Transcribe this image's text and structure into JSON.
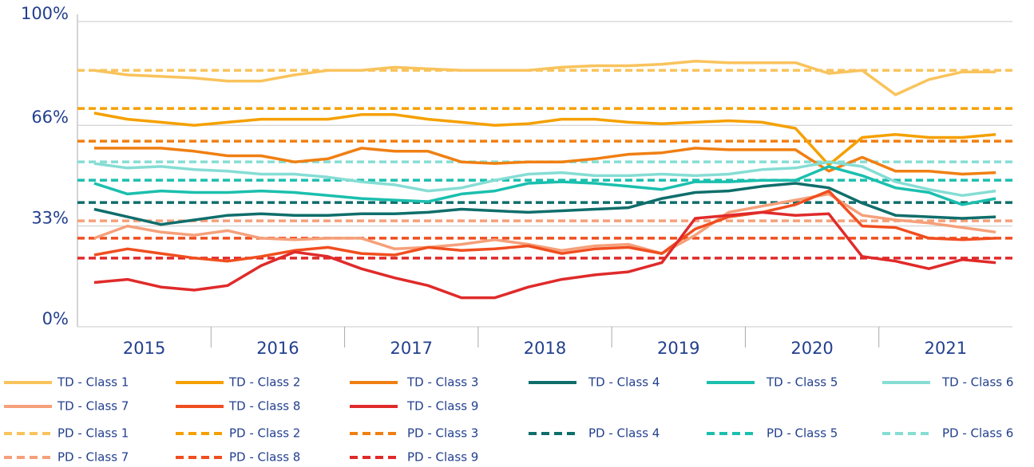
{
  "chart_data": {
    "type": "line",
    "categories": [
      "2015",
      null,
      null,
      null,
      "2016",
      null,
      null,
      null,
      "2017",
      null,
      null,
      null,
      "2018",
      null,
      null,
      null,
      "2019",
      null,
      null,
      null,
      "2020",
      null,
      null,
      null,
      "2021",
      null,
      null,
      null
    ],
    "ylim": [
      0,
      100
    ],
    "yticks": [
      {
        "value": 0,
        "label": "0%"
      },
      {
        "value": 33,
        "label": "33%"
      },
      {
        "value": 66,
        "label": "66%"
      },
      {
        "value": 100,
        "label": "100%"
      }
    ],
    "grid": true,
    "series": [
      {
        "name": "TD - Class 1",
        "color": "#f9c35c",
        "values": [
          84,
          82.5,
          82,
          81.5,
          80.5,
          80.5,
          82.5,
          84,
          84,
          85,
          84.5,
          84,
          84,
          84,
          85,
          85.5,
          85.5,
          86,
          87,
          86.5,
          86.5,
          86.5,
          83,
          84,
          76,
          81,
          83.5,
          83.5
        ]
      },
      {
        "name": "TD - Class 2",
        "color": "#f5a000",
        "values": [
          70,
          68,
          67,
          66,
          67,
          68,
          68,
          68,
          69.5,
          69.5,
          68,
          67,
          66,
          66.5,
          68,
          68,
          67,
          66.5,
          67,
          67.5,
          67,
          65,
          53,
          62,
          63,
          62,
          62,
          63
        ]
      },
      {
        "name": "TD - Class 3",
        "color": "#f07f12",
        "values": [
          58.5,
          58.5,
          58.5,
          57.5,
          56,
          56,
          54,
          55,
          58.5,
          57.5,
          57.5,
          54,
          53.5,
          54,
          54,
          55,
          56.5,
          57,
          58.5,
          58,
          58,
          58,
          51,
          55.5,
          51,
          51,
          50,
          50.5
        ]
      },
      {
        "name": "TD - Class 4",
        "color": "#0f6e6b",
        "values": [
          38.5,
          36,
          33.5,
          35,
          36.5,
          37,
          36.5,
          36.5,
          37,
          37,
          37.5,
          38.5,
          38,
          37.5,
          38,
          38.5,
          39,
          42,
          44,
          44.5,
          46,
          47,
          45.5,
          40.5,
          36.5,
          36,
          35.5,
          36
        ]
      },
      {
        "name": "TD - Class 5",
        "color": "#1bbfae",
        "values": [
          47,
          43.5,
          44.5,
          44,
          44,
          44.5,
          44,
          43,
          42,
          41.5,
          41,
          43.5,
          44.5,
          47,
          47.5,
          47,
          46,
          45,
          47.5,
          47.5,
          48,
          48,
          52.5,
          49.5,
          45.5,
          44,
          40,
          42
        ]
      },
      {
        "name": "TD - Class 6",
        "color": "#86ddd4",
        "values": [
          53.5,
          52,
          52.5,
          51.5,
          51,
          50,
          50,
          49,
          47.5,
          46.5,
          44.5,
          45.5,
          48,
          50,
          50.5,
          49.5,
          49.5,
          50,
          49.5,
          50,
          51.5,
          52,
          54,
          52.5,
          47.5,
          45,
          43,
          44.5
        ]
      },
      {
        "name": "TD - Class 7",
        "color": "#f5a07a",
        "values": [
          29,
          33,
          31,
          30,
          31.5,
          29,
          28.5,
          29,
          29,
          25.5,
          26,
          27,
          28.5,
          27,
          25,
          26.5,
          27,
          24,
          30,
          37.5,
          39.5,
          41.5,
          43.5,
          36.5,
          35,
          34,
          32.5,
          31
        ]
      },
      {
        "name": "TD - Class 8",
        "color": "#f04e1f",
        "values": [
          23.5,
          25.5,
          24,
          22.5,
          21.5,
          23,
          25,
          26,
          24,
          23.5,
          26,
          25,
          25.5,
          26.5,
          24,
          25.5,
          26,
          24,
          32,
          36,
          37.5,
          40,
          44.5,
          33,
          32.5,
          29,
          28.5,
          29
        ]
      },
      {
        "name": "TD - Class 9",
        "color": "#e02a2a",
        "values": [
          14.5,
          15.5,
          13,
          12,
          13.5,
          20,
          24.5,
          23,
          19,
          16,
          13.5,
          9.5,
          9.5,
          13,
          15.5,
          17,
          18,
          21,
          35.5,
          36.5,
          37.5,
          36.5,
          37,
          23,
          21.5,
          19,
          22,
          21
        ]
      }
    ],
    "reference_lines": [
      {
        "name": "PD - Class 1",
        "color": "#f9c35c",
        "value": 84
      },
      {
        "name": "PD - Class 2",
        "color": "#f5a000",
        "value": 71.5
      },
      {
        "name": "PD - Class 3",
        "color": "#f07f12",
        "value": 60.8
      },
      {
        "name": "PD - Class 4",
        "color": "#0f6e6b",
        "value": 40.7
      },
      {
        "name": "PD - Class 5",
        "color": "#1bbfae",
        "value": 48
      },
      {
        "name": "PD - Class 6",
        "color": "#86ddd4",
        "value": 54
      },
      {
        "name": "PD - Class 7",
        "color": "#f5a07a",
        "value": 34.7
      },
      {
        "name": "PD - Class 8",
        "color": "#f04e1f",
        "value": 29
      },
      {
        "name": "PD - Class 9",
        "color": "#e02a2a",
        "value": 22.5
      }
    ]
  }
}
